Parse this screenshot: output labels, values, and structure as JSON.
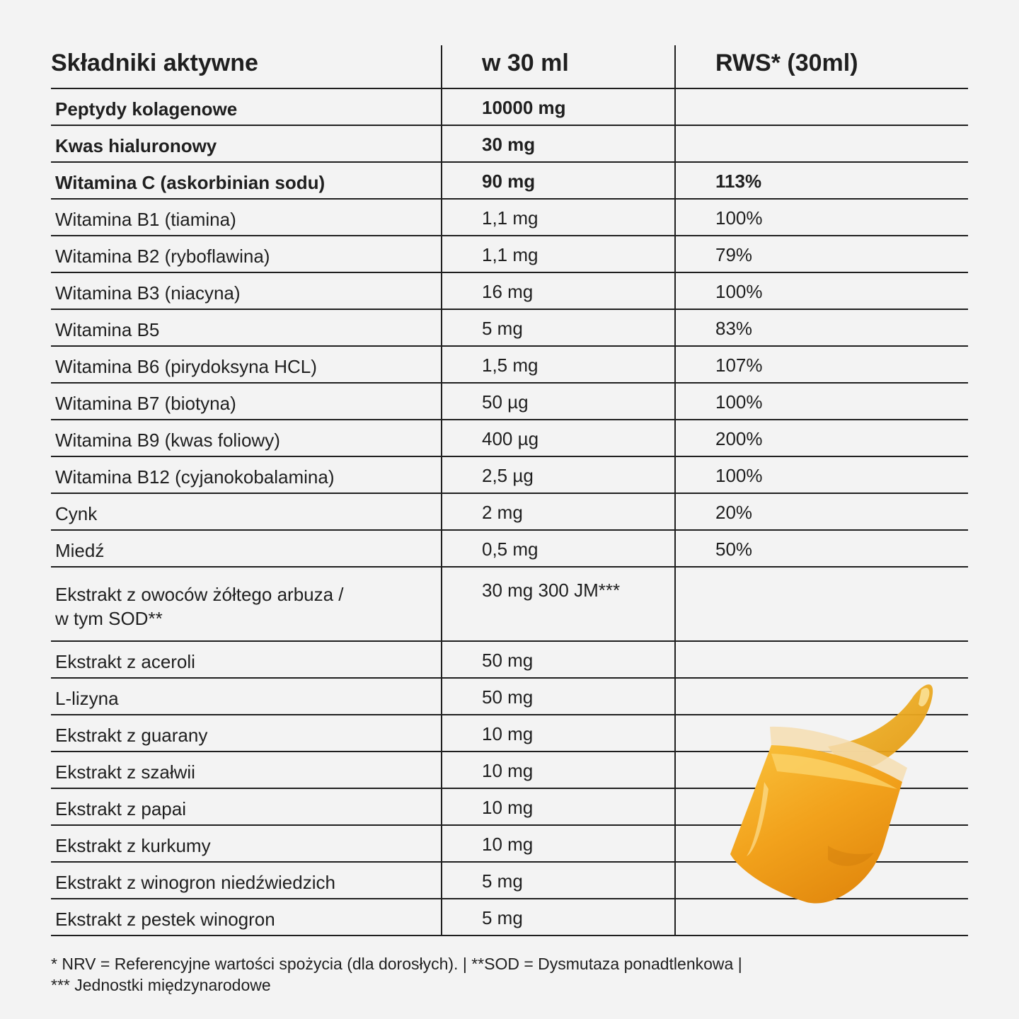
{
  "table": {
    "headers": [
      "Składniki aktywne",
      "w 30 ml",
      "RWS* (30ml)"
    ],
    "rows": [
      {
        "name": "Peptydy kolagenowe",
        "amount": "10000 mg",
        "rws": "",
        "bold": true
      },
      {
        "name": "Kwas hialuronowy",
        "amount": "30 mg",
        "rws": "",
        "bold": true
      },
      {
        "name": "Witamina C (askorbinian sodu)",
        "amount": "90 mg",
        "rws": "113%",
        "bold": true
      },
      {
        "name": "Witamina B1 (tiamina)",
        "amount": "1,1 mg",
        "rws": "100%"
      },
      {
        "name": "Witamina B2 (ryboflawina)",
        "amount": "1,1 mg",
        "rws": "79%"
      },
      {
        "name": "Witamina B3 (niacyna)",
        "amount": "16 mg",
        "rws": "100%"
      },
      {
        "name": "Witamina B5",
        "amount": "5 mg",
        "rws": "83%"
      },
      {
        "name": "Witamina B6 (pirydoksyna HCL)",
        "amount": "1,5 mg",
        "rws": "107%"
      },
      {
        "name": "Witamina B7 (biotyna)",
        "amount": "50 µg",
        "rws": "100%"
      },
      {
        "name": "Witamina B9 (kwas foliowy)",
        "amount": "400 µg",
        "rws": "200%"
      },
      {
        "name": "Witamina B12 (cyjanokobalamina)",
        "amount": "2,5 µg",
        "rws": "100%"
      },
      {
        "name": "Cynk",
        "amount": "2 mg",
        "rws": "20%"
      },
      {
        "name": "Miedź",
        "amount": "0,5 mg",
        "rws": "50%"
      },
      {
        "name": "Ekstrakt z owoców żółtego arbuza /",
        "name2": "w tym SOD**",
        "amount": "30 mg 300 JM***",
        "rws": ""
      },
      {
        "name": "Ekstrakt z aceroli",
        "amount": "50 mg",
        "rws": ""
      },
      {
        "name": "L-lizyna",
        "amount": "50 mg",
        "rws": ""
      },
      {
        "name": "Ekstrakt z guarany",
        "amount": "10 mg",
        "rws": ""
      },
      {
        "name": "Ekstrakt z szałwii",
        "amount": "10 mg",
        "rws": ""
      },
      {
        "name": "Ekstrakt z papai",
        "amount": "10 mg",
        "rws": ""
      },
      {
        "name": "Ekstrakt z kurkumy",
        "amount": "10 mg",
        "rws": ""
      },
      {
        "name": "Ekstrakt z winogron niedźwiedzich",
        "amount": "5 mg",
        "rws": ""
      },
      {
        "name": "Ekstrakt z pestek winogron",
        "amount": "5 mg",
        "rws": ""
      }
    ]
  },
  "footnote": {
    "line1": "* NRV = Referencyjne wartości spożycia (dla dorosłych). | **SOD = Dysmutaza ponadtlenkowa |",
    "line2": "*** Jednostki międzynarodowe"
  },
  "colors": {
    "background": "#f3f3f3",
    "text": "#1f1f1f",
    "liquid": "#f0a21a"
  }
}
